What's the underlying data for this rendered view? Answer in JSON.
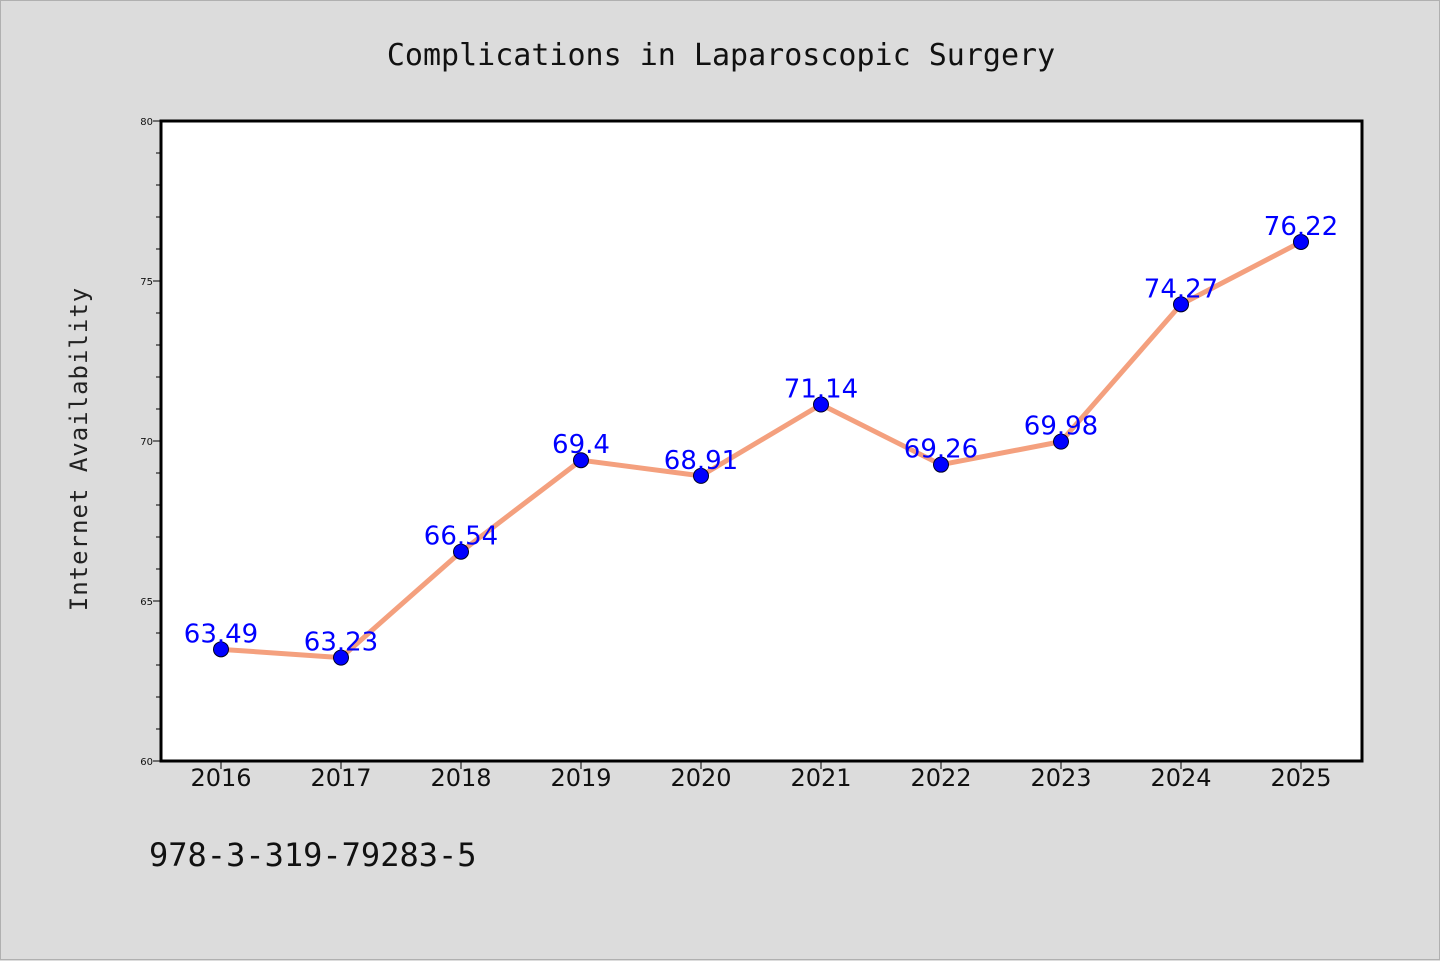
{
  "chart_data": {
    "type": "line",
    "title": "Complications in Laparoscopic Surgery",
    "xlabel": "",
    "ylabel": "Internet Availability",
    "categories": [
      "2016",
      "2017",
      "2018",
      "2019",
      "2020",
      "2021",
      "2022",
      "2023",
      "2024",
      "2025"
    ],
    "series": [
      {
        "values": [
          63.49,
          63.23,
          66.54,
          69.4,
          68.91,
          71.14,
          69.26,
          69.98,
          74.27,
          76.22
        ],
        "data_labels": [
          "63.49",
          "63.23",
          "66.54",
          "69.4",
          "68.91",
          "71.14",
          "69.26",
          "69.98",
          "74.27",
          "76.22"
        ]
      }
    ],
    "ylim": [
      60,
      80
    ],
    "y_ticks": [
      "60",
      "65",
      "70",
      "75",
      "80"
    ],
    "grid": false,
    "legend": "none",
    "colors": {
      "line": "#f4a07e",
      "marker": "#0000ff",
      "data_label": "#0000ff",
      "background": "#dcdcdc",
      "plot_area": "#ffffff"
    }
  },
  "footer": {
    "code": "978-3-319-79283-5"
  }
}
